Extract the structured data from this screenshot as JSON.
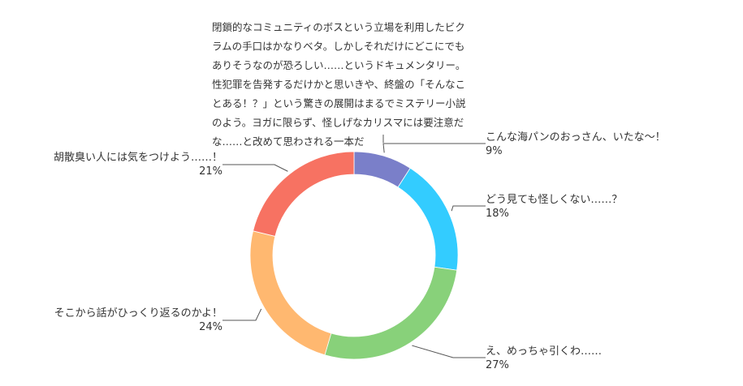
{
  "chart_data": {
    "type": "pie",
    "style": "donut",
    "slices": [
      {
        "label": "閉鎖的なコミュニティのボスという立場を利用したビクラムの手口はかなりベタ。しかしそれだけにどこにでもありそうなのが恐ろしい……というドキュメンタリー。性犯罪を告発するだけかと思いきや、終盤の「そんなことある！？」という驚きの展開はまるでミステリー小説のよう。ヨガに限らず、怪しげなカリスマには要注意だな……と改めて思わされる一本だ",
        "lines": [
          "閉鎖的なコミュニティのボスという立場を利用したビク",
          "ラムの手口はかなりベタ。しかしそれだけにどこにでも",
          "ありそうなのが恐ろしい……というドキュメンタリー。",
          "性犯罪を告発するだけかと思いきや、終盤の「そんなこ",
          "とある！？」という驚きの展開はまるでミステリー小説",
          "のよう。ヨガに限らず、怪しげなカリスマには要注意だ",
          "な……と改めて思わされる一本だ"
        ],
        "value": 0,
        "percent_label": "",
        "color": "#7a6fc4"
      },
      {
        "label": "こんな海パンのおっさん、いたな〜！",
        "value": 9,
        "percent_label": "9%",
        "color": "#7a7fc9"
      },
      {
        "label": "どう見ても怪しくない……？",
        "value": 18,
        "percent_label": "18%",
        "color": "#33ccff"
      },
      {
        "label": "え、めっちゃ引くわ……",
        "value": 27,
        "percent_label": "27%",
        "color": "#88d17a"
      },
      {
        "label": "そこから話がひっくり返るのかよ！",
        "value": 24,
        "percent_label": "24%",
        "color": "#ffb870"
      },
      {
        "label": "胡散臭い人には気をつけよう……！",
        "value": 21,
        "percent_label": "21%",
        "color": "#f77262"
      }
    ]
  }
}
